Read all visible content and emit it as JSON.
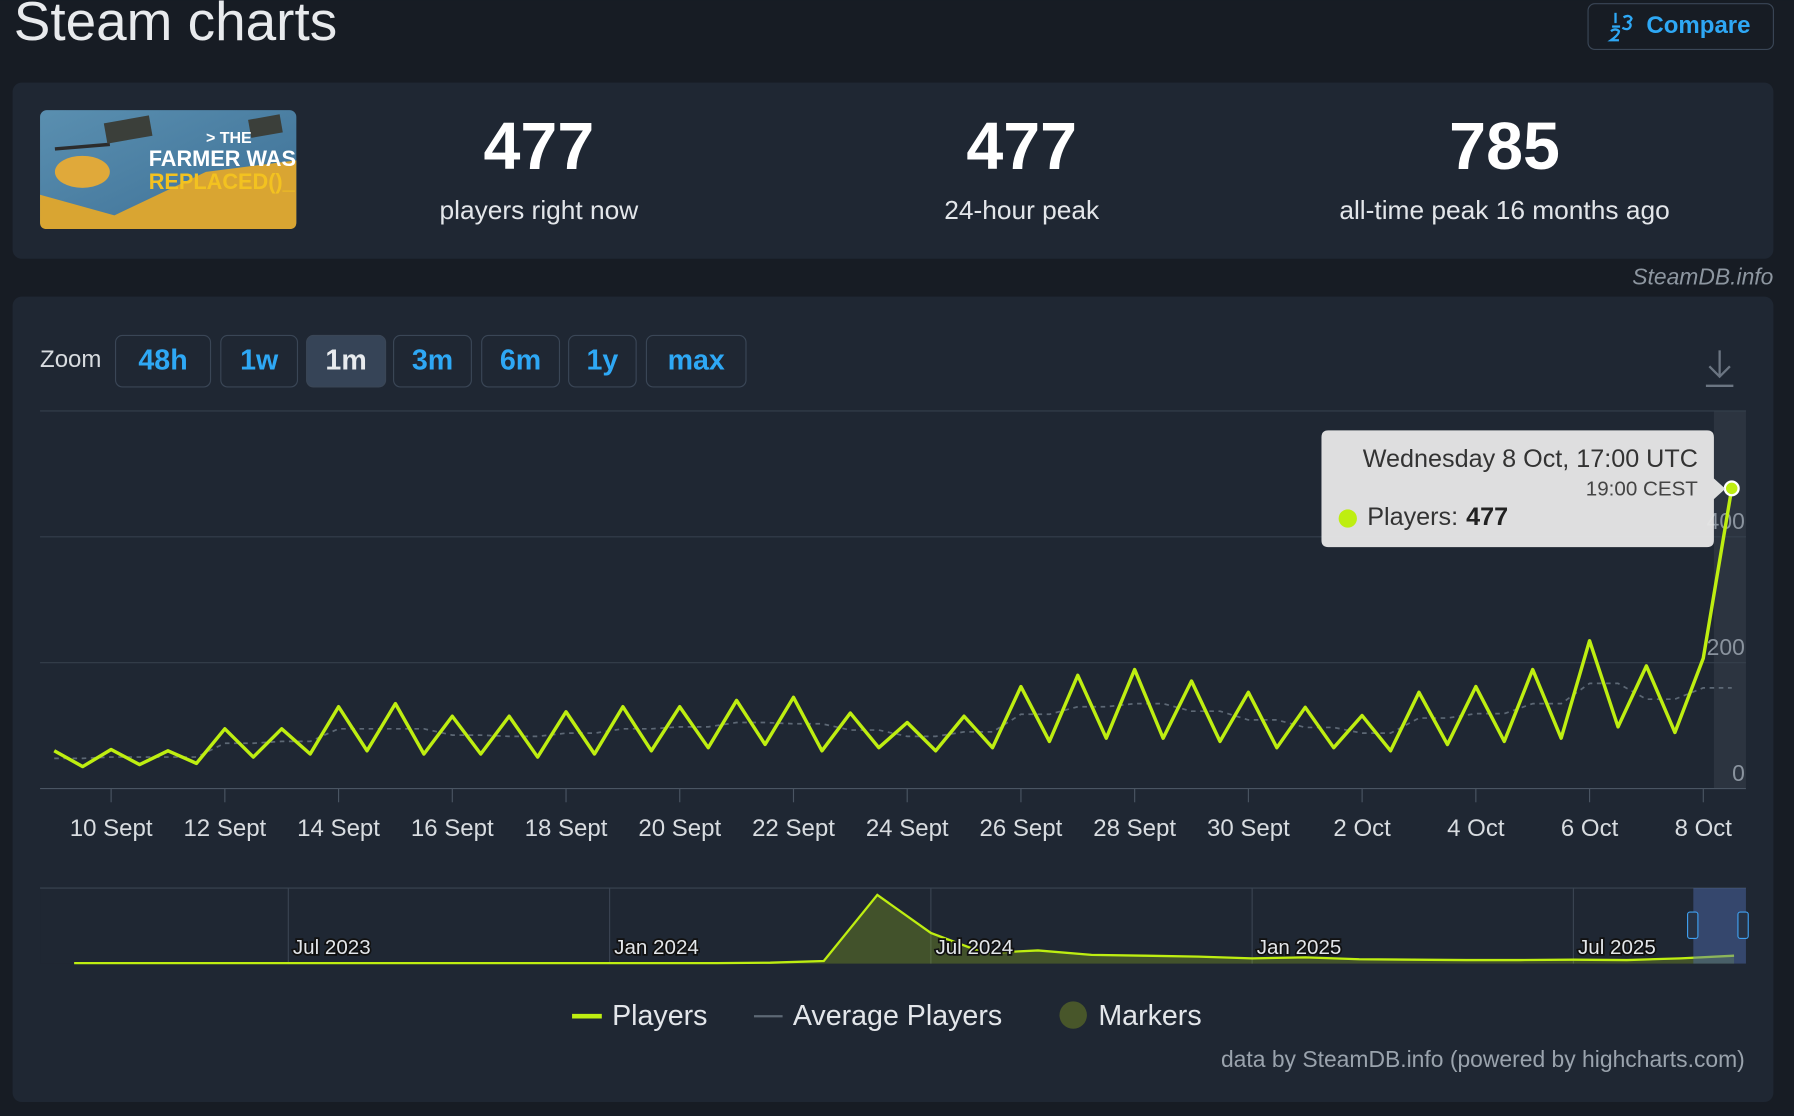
{
  "header": {
    "title": "Steam charts",
    "compare_button": "Compare"
  },
  "thumbnail_text": [
    "> THE",
    "FARMER WAS",
    "REPLACED()_"
  ],
  "stats": [
    {
      "value": 477,
      "label": "players right now"
    },
    {
      "value": 477,
      "label": "24-hour peak"
    },
    {
      "value": 785,
      "label": "all-time peak 16 months ago"
    }
  ],
  "watermark": "SteamDB.info",
  "zoom": {
    "label": "Zoom",
    "options": [
      "48h",
      "1w",
      "1m",
      "3m",
      "6m",
      "1y",
      "max"
    ],
    "active": "1m"
  },
  "chart_data": [
    {
      "type": "line",
      "categories": [
        null,
        null,
        "10 Sept",
        null,
        null,
        null,
        "12 Sept",
        null,
        null,
        null,
        "14 Sept",
        null,
        null,
        null,
        "16 Sept",
        null,
        null,
        null,
        "18 Sept",
        null,
        null,
        null,
        "20 Sept",
        null,
        null,
        null,
        "22 Sept",
        null,
        null,
        null,
        "24 Sept",
        null,
        null,
        null,
        "26 Sept",
        null,
        null,
        null,
        "28 Sept",
        null,
        null,
        null,
        "30 Sept",
        null,
        null,
        null,
        "2 Oct",
        null,
        null,
        null,
        "4 Oct",
        null,
        null,
        null,
        "6 Oct",
        null,
        null,
        null,
        "8 Oct",
        null
      ],
      "series": [
        {
          "name": "Players",
          "color": "#beee11",
          "values": [
            60,
            35,
            62,
            38,
            60,
            40,
            95,
            50,
            95,
            55,
            130,
            60,
            135,
            55,
            115,
            55,
            115,
            50,
            122,
            55,
            130,
            60,
            130,
            65,
            140,
            70,
            145,
            60,
            120,
            65,
            105,
            60,
            115,
            65,
            162,
            75,
            180,
            80,
            189,
            80,
            171,
            75,
            153,
            65,
            129,
            65,
            116,
            60,
            153,
            70,
            162,
            75,
            189,
            80,
            235,
            98,
            195,
            89,
            207,
            477
          ]
        },
        {
          "name": "Average Players",
          "color": "#5d6875",
          "values": [
            48,
            48,
            50,
            50,
            50,
            50,
            72,
            72,
            75,
            75,
            95,
            95,
            95,
            95,
            85,
            85,
            83,
            83,
            88,
            88,
            95,
            95,
            98,
            98,
            105,
            105,
            103,
            103,
            93,
            93,
            83,
            83,
            90,
            90,
            118,
            118,
            130,
            130,
            135,
            135,
            123,
            123,
            109,
            109,
            97,
            97,
            88,
            88,
            112,
            112,
            119,
            119,
            135,
            135,
            167,
            167,
            142,
            142,
            160,
            160
          ]
        }
      ],
      "marker_legend": {
        "name": "Markers",
        "color": "#48562a"
      },
      "ylim": [
        0,
        600
      ],
      "yticks": [
        0,
        200,
        400
      ],
      "grid": true,
      "tooltip": {
        "title": "Wednesday 8 Oct, 17:00 UTC",
        "subtitle": "19:00 CEST",
        "label": "Players:",
        "value": 477
      }
    },
    {
      "type": "area",
      "categories": [
        null,
        null,
        null,
        null,
        "Jul 2023",
        null,
        null,
        null,
        null,
        null,
        "Jan 2024",
        null,
        null,
        null,
        null,
        null,
        "Jul 2024",
        null,
        null,
        null,
        null,
        null,
        "Jan 2025",
        null,
        null,
        null,
        null,
        null,
        "Jul 2025",
        null,
        null,
        null
      ],
      "series": [
        {
          "name": "Players",
          "color": "#beee11",
          "values": [
            5,
            5,
            5,
            5,
            5,
            5,
            5,
            5,
            5,
            5,
            5,
            5,
            5,
            10,
            30,
            785,
            350,
            120,
            150,
            100,
            90,
            80,
            60,
            70,
            50,
            45,
            40,
            40,
            45,
            40,
            60,
            90
          ]
        }
      ]
    }
  ],
  "credit": "data by SteamDB.info (powered by highcharts.com)"
}
